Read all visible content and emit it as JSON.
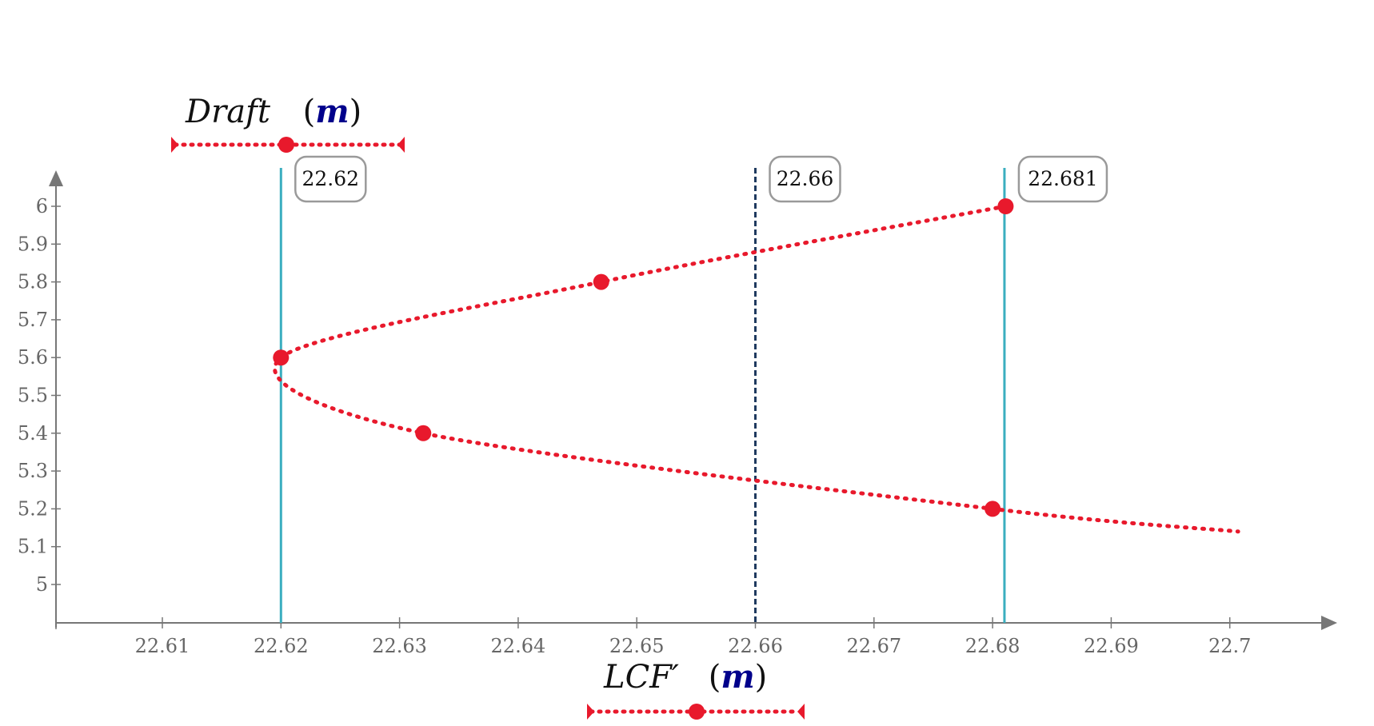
{
  "chart_data": {
    "type": "line",
    "x_axis": {
      "title": "LCF′",
      "unit": "m",
      "range": [
        22.6,
        22.71
      ],
      "ticks": [
        22.61,
        22.62,
        22.63,
        22.64,
        22.65,
        22.66,
        22.67,
        22.68,
        22.69,
        22.7
      ],
      "tick_labels": [
        "22.61",
        "22.62",
        "22.63",
        "22.64",
        "22.65",
        "22.66",
        "22.67",
        "22.68",
        "22.69",
        "22.7"
      ]
    },
    "y_axis": {
      "title": "Draft",
      "unit": "m",
      "range": [
        4.9,
        6.1
      ],
      "ticks": [
        5,
        5.1,
        5.2,
        5.3,
        5.4,
        5.5,
        5.6,
        5.7,
        5.8,
        5.9,
        6
      ],
      "tick_labels": [
        "5",
        "5.1",
        "5.2",
        "5.3",
        "5.4",
        "5.5",
        "5.6",
        "5.7",
        "5.8",
        "5.9",
        "6"
      ]
    },
    "series": [
      {
        "color": "#e8192c",
        "style": "dotted",
        "curve": [
          {
            "x": 22.6811,
            "y": 6.0
          },
          {
            "x": 22.647,
            "y": 5.8
          },
          {
            "x": 22.62,
            "y": 5.6
          },
          {
            "x": 22.632,
            "y": 5.4
          },
          {
            "x": 22.68,
            "y": 5.2
          },
          {
            "x": 22.7007,
            "y": 5.14
          }
        ],
        "points": [
          {
            "x": 22.6811,
            "y": 6.0
          },
          {
            "x": 22.647,
            "y": 5.8
          },
          {
            "x": 22.62,
            "y": 5.6
          },
          {
            "x": 22.632,
            "y": 5.4
          },
          {
            "x": 22.68,
            "y": 5.2
          }
        ]
      }
    ],
    "vertical_markers": [
      {
        "x": 22.62,
        "label": "22.62",
        "style": "solid",
        "color": "#3aaebf"
      },
      {
        "x": 22.66,
        "label": "22.66",
        "style": "dashed",
        "color": "#1f3a5f"
      },
      {
        "x": 22.681,
        "label": "22.681",
        "style": "solid",
        "color": "#3aaebf"
      }
    ],
    "grid": false
  }
}
